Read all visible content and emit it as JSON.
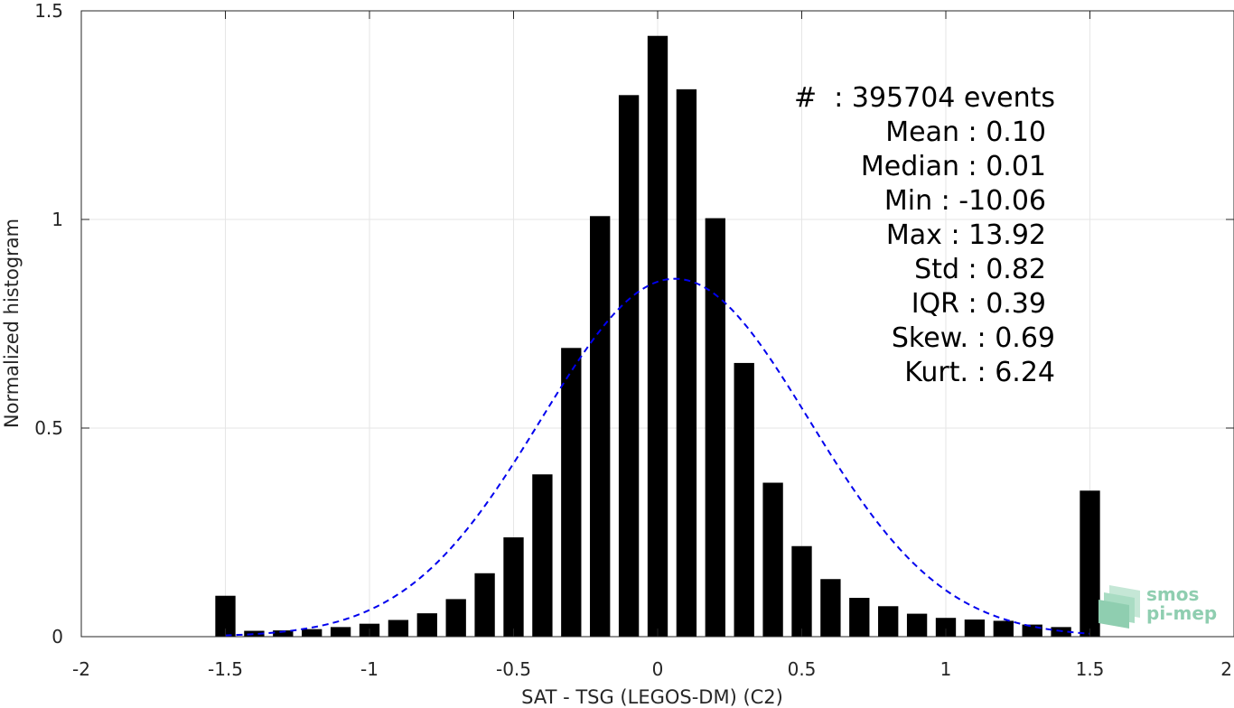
{
  "chart_data": {
    "type": "bar",
    "xlabel": "SAT - TSG (LEGOS-DM) (C2)",
    "ylabel": "Normalized histogram",
    "xlim": [
      -2,
      2
    ],
    "ylim": [
      0,
      1.5
    ],
    "x_ticks": [
      "-2",
      "-1.5",
      "-1",
      "-0.5",
      "0",
      "0.5",
      "1",
      "1.5",
      "2"
    ],
    "y_ticks": [
      "0",
      "0.5",
      "1",
      "1.5"
    ],
    "grid": true,
    "bin_width": 0.1,
    "bars": [
      {
        "x": -1.5,
        "value": 0.098
      },
      {
        "x": -1.4,
        "value": 0.014
      },
      {
        "x": -1.3,
        "value": 0.015
      },
      {
        "x": -1.2,
        "value": 0.018
      },
      {
        "x": -1.1,
        "value": 0.023
      },
      {
        "x": -1.0,
        "value": 0.031
      },
      {
        "x": -0.9,
        "value": 0.04
      },
      {
        "x": -0.8,
        "value": 0.056
      },
      {
        "x": -0.7,
        "value": 0.09
      },
      {
        "x": -0.6,
        "value": 0.152
      },
      {
        "x": -0.5,
        "value": 0.238
      },
      {
        "x": -0.4,
        "value": 0.389
      },
      {
        "x": -0.3,
        "value": 0.692
      },
      {
        "x": -0.2,
        "value": 1.008
      },
      {
        "x": -0.1,
        "value": 1.298
      },
      {
        "x": 0.0,
        "value": 1.44
      },
      {
        "x": 0.1,
        "value": 1.312
      },
      {
        "x": 0.2,
        "value": 1.003
      },
      {
        "x": 0.3,
        "value": 0.656
      },
      {
        "x": 0.4,
        "value": 0.369
      },
      {
        "x": 0.5,
        "value": 0.217
      },
      {
        "x": 0.6,
        "value": 0.138
      },
      {
        "x": 0.7,
        "value": 0.093
      },
      {
        "x": 0.8,
        "value": 0.073
      },
      {
        "x": 0.9,
        "value": 0.055
      },
      {
        "x": 1.0,
        "value": 0.045
      },
      {
        "x": 1.1,
        "value": 0.041
      },
      {
        "x": 1.2,
        "value": 0.038
      },
      {
        "x": 1.3,
        "value": 0.029
      },
      {
        "x": 1.4,
        "value": 0.023
      },
      {
        "x": 1.5,
        "value": 0.35
      }
    ],
    "fit_curve": {
      "style": "dashed",
      "color": "#0000ee",
      "mean": 0.06,
      "std": 0.465,
      "x_range": [
        -1.5,
        1.5
      ]
    },
    "bar_color": "#000000",
    "grid_color": "#e6e6e6",
    "stats": [
      "#  : 395704 events",
      "Mean : 0.10",
      "Median : 0.01",
      "Min : -10.06",
      "Max : 13.92",
      "Std : 0.82",
      "IQR : 0.39",
      "Skew. : 0.69",
      "Kurt. : 6.24"
    ]
  },
  "logo": {
    "line1": "smos",
    "line2": "pi-mep",
    "color": "#8fceb0"
  }
}
